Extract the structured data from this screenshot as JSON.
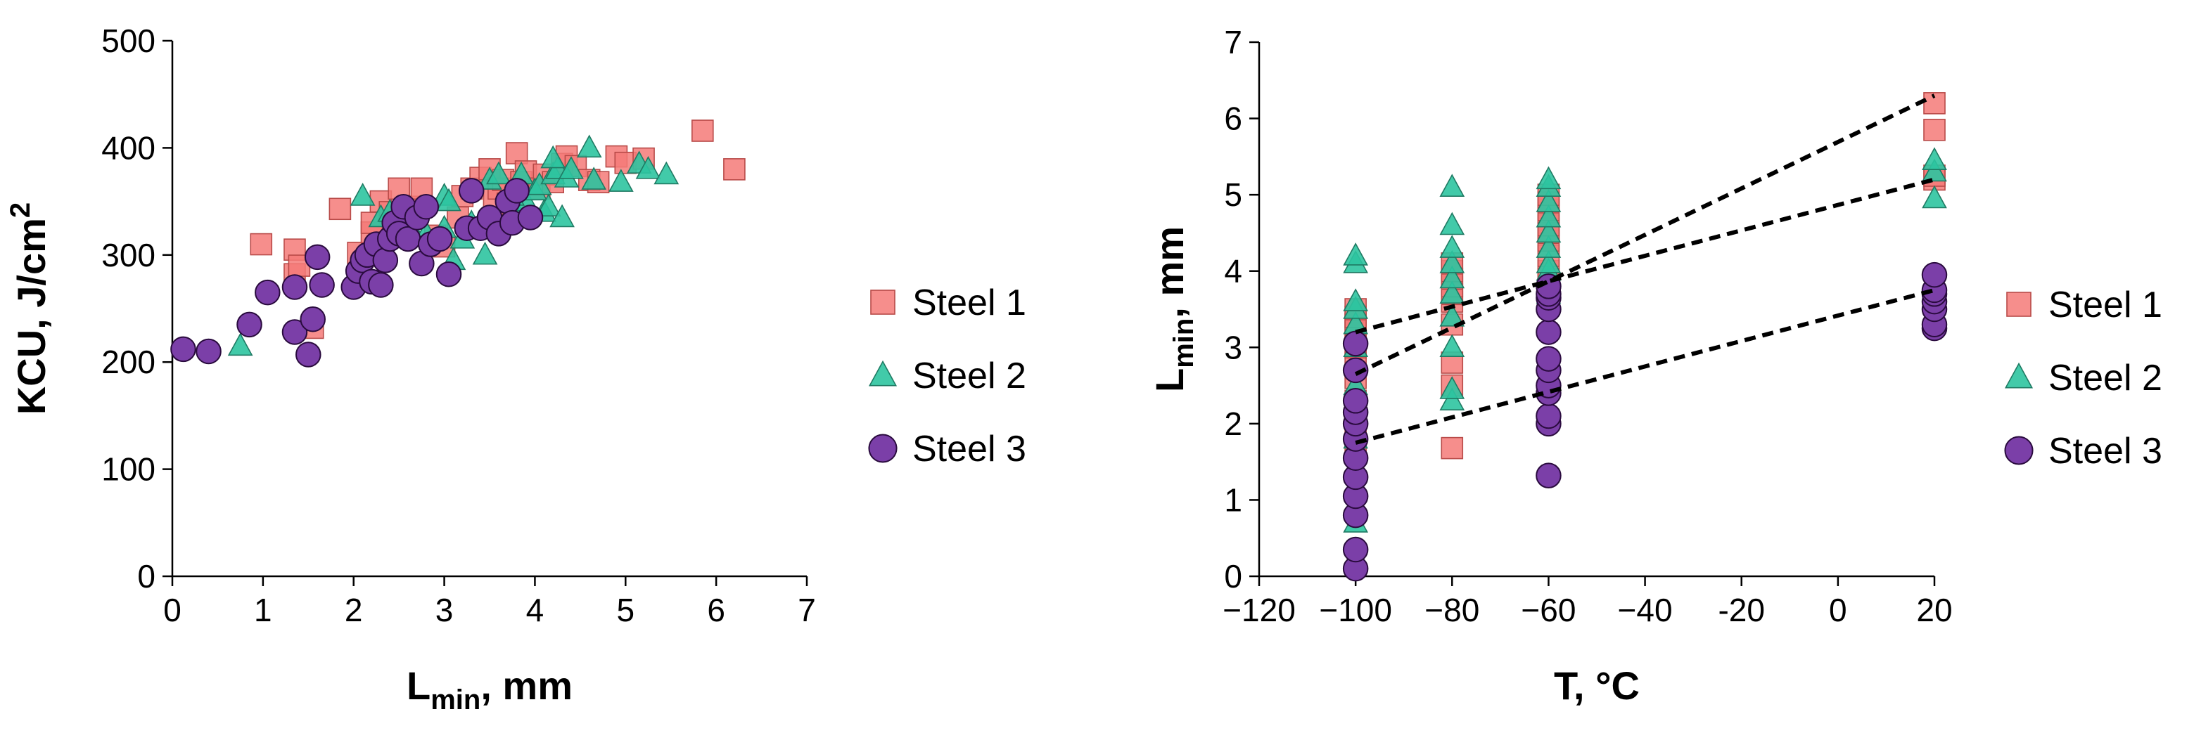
{
  "chart_data": [
    {
      "type": "scatter",
      "xlabel": "L",
      "xlabel_sub": "min",
      "xlabel_rest": ", mm",
      "ylabel": "KCU, J/cm",
      "ylabel_sup": "2",
      "xlim": [
        0,
        7
      ],
      "ylim": [
        0,
        500
      ],
      "xticks": [
        0,
        1,
        2,
        3,
        4,
        5,
        6,
        7
      ],
      "yticks": [
        0,
        100,
        200,
        300,
        400,
        500
      ],
      "legend_position": "right",
      "series": [
        {
          "name": "Steel 1",
          "marker": "square",
          "color": "#f47a78",
          "x": [
            0.98,
            1.35,
            1.35,
            1.55,
            1.85,
            2.05,
            2.2,
            2.3,
            2.5,
            2.55,
            2.7,
            2.75,
            2.9,
            3.0,
            3.15,
            3.3,
            3.4,
            3.5,
            3.55,
            3.6,
            3.65,
            3.7,
            3.8,
            3.85,
            3.9,
            4.05,
            4.1,
            4.2,
            4.3,
            4.35,
            4.45,
            4.6,
            4.7,
            4.9,
            5.0,
            5.2,
            5.85,
            6.2,
            1.4,
            2.2,
            2.4,
            3.2
          ],
          "y": [
            310,
            305,
            282,
            232,
            343,
            302,
            321,
            350,
            362,
            330,
            345,
            362,
            318,
            308,
            335,
            362,
            372,
            380,
            352,
            362,
            370,
            348,
            395,
            368,
            378,
            362,
            375,
            368,
            385,
            392,
            383,
            370,
            368,
            392,
            386,
            390,
            416,
            380,
            290,
            330,
            340,
            355
          ]
        },
        {
          "name": "Steel 2",
          "marker": "triangle",
          "color": "#2ec4a0",
          "x": [
            0.75,
            2.1,
            2.3,
            2.4,
            2.6,
            2.8,
            3.0,
            3.05,
            3.1,
            3.2,
            3.3,
            3.45,
            3.5,
            3.6,
            3.7,
            3.8,
            3.9,
            4.0,
            4.05,
            4.1,
            4.15,
            4.2,
            4.25,
            4.3,
            4.35,
            4.4,
            4.6,
            4.65,
            4.95,
            5.15,
            5.25,
            5.45,
            3.75,
            3.85,
            4.2,
            3.0
          ],
          "y": [
            215,
            355,
            335,
            340,
            330,
            320,
            355,
            350,
            295,
            315,
            330,
            300,
            370,
            375,
            330,
            340,
            350,
            360,
            365,
            340,
            345,
            375,
            380,
            335,
            372,
            380,
            400,
            370,
            368,
            385,
            380,
            375,
            355,
            375,
            390,
            325
          ]
        },
        {
          "name": "Steel 3",
          "marker": "circle",
          "color": "#7b3fa8",
          "x": [
            0.12,
            0.4,
            0.85,
            1.05,
            1.35,
            1.35,
            1.5,
            1.55,
            1.6,
            1.65,
            2.0,
            2.05,
            2.1,
            2.15,
            2.2,
            2.25,
            2.3,
            2.35,
            2.4,
            2.45,
            2.5,
            2.55,
            2.6,
            2.7,
            2.75,
            2.8,
            2.85,
            2.95,
            3.05,
            3.25,
            3.3,
            3.4,
            3.5,
            3.6,
            3.7,
            3.75,
            3.8,
            3.95
          ],
          "y": [
            212,
            210,
            235,
            265,
            228,
            270,
            207,
            240,
            298,
            272,
            270,
            285,
            295,
            300,
            275,
            310,
            272,
            295,
            315,
            330,
            320,
            345,
            315,
            335,
            292,
            345,
            310,
            315,
            282,
            325,
            360,
            325,
            335,
            320,
            350,
            330,
            360,
            335
          ]
        }
      ]
    },
    {
      "type": "scatter",
      "xlabel": "T, °C",
      "ylabel": "L",
      "ylabel_sub": "min",
      "ylabel_rest": ", mm",
      "xlim": [
        -120,
        20
      ],
      "ylim": [
        0,
        7
      ],
      "xticks": [
        -120,
        -100,
        -80,
        -60,
        -40,
        -20,
        0,
        20
      ],
      "xtick_labels": [
        "−120",
        "−100",
        "−80",
        "−60",
        "−40",
        "-20",
        "0",
        "20"
      ],
      "yticks": [
        0,
        1,
        2,
        3,
        4,
        5,
        6,
        7
      ],
      "legend_position": "right",
      "series": [
        {
          "name": "Steel 1",
          "marker": "square",
          "color": "#f47a78",
          "x": [
            -100,
            -100,
            -100,
            -100,
            -100,
            -100,
            -100,
            -100,
            -100,
            -100,
            -80,
            -80,
            -80,
            -80,
            -80,
            -80,
            -80,
            -80,
            -80,
            -80,
            -60,
            -60,
            -60,
            -60,
            -60,
            -60,
            -60,
            -60,
            -60,
            -60,
            20,
            20,
            20,
            20
          ],
          "y": [
            1.7,
            2.0,
            2.3,
            2.6,
            2.8,
            3.0,
            3.2,
            3.3,
            3.4,
            3.5,
            1.68,
            2.5,
            2.8,
            3.3,
            3.6,
            3.7,
            3.8,
            3.9,
            4.0,
            4.1,
            3.7,
            3.9,
            4.0,
            4.2,
            4.4,
            4.5,
            4.6,
            4.8,
            4.9,
            5.0,
            6.2,
            5.85,
            5.2,
            5.25
          ]
        },
        {
          "name": "Steel 2",
          "marker": "triangle",
          "color": "#2ec4a0",
          "x": [
            -100,
            -100,
            -100,
            -100,
            -100,
            -100,
            -100,
            -100,
            -100,
            -100,
            -80,
            -80,
            -80,
            -80,
            -80,
            -80,
            -80,
            -80,
            -80,
            -80,
            -60,
            -60,
            -60,
            -60,
            -60,
            -60,
            -60,
            -60,
            -60,
            -60,
            20,
            20,
            20
          ],
          "y": [
            0.7,
            1.2,
            1.8,
            2.5,
            3.0,
            3.3,
            3.5,
            3.6,
            4.1,
            4.2,
            2.3,
            2.45,
            3.0,
            3.4,
            3.7,
            3.9,
            4.1,
            4.3,
            4.6,
            5.1,
            3.7,
            3.9,
            4.0,
            4.1,
            4.3,
            4.5,
            4.7,
            4.9,
            5.1,
            5.2,
            4.95,
            5.3,
            5.45
          ]
        },
        {
          "name": "Steel 3",
          "marker": "circle",
          "color": "#7b3fa8",
          "x": [
            -100,
            -100,
            -100,
            -100,
            -100,
            -100,
            -100,
            -100,
            -100,
            -100,
            -100,
            -100,
            -60,
            -60,
            -60,
            -60,
            -60,
            -60,
            -60,
            -60,
            -60,
            -60,
            -60,
            -60,
            20,
            20,
            20,
            20,
            20,
            20,
            20
          ],
          "y": [
            0.1,
            0.35,
            0.8,
            1.05,
            1.3,
            1.55,
            1.8,
            2.0,
            2.15,
            2.3,
            2.7,
            3.05,
            1.32,
            2.0,
            2.1,
            2.4,
            2.5,
            2.7,
            2.85,
            3.2,
            3.5,
            3.65,
            3.7,
            3.8,
            3.25,
            3.3,
            3.5,
            3.6,
            3.7,
            3.75,
            3.95
          ]
        }
      ],
      "trendlines": [
        {
          "x": [
            -100,
            20
          ],
          "y": [
            2.65,
            6.3
          ]
        },
        {
          "x": [
            -100,
            20
          ],
          "y": [
            3.2,
            5.2
          ]
        },
        {
          "x": [
            -100,
            20
          ],
          "y": [
            1.75,
            3.75
          ]
        }
      ]
    }
  ]
}
